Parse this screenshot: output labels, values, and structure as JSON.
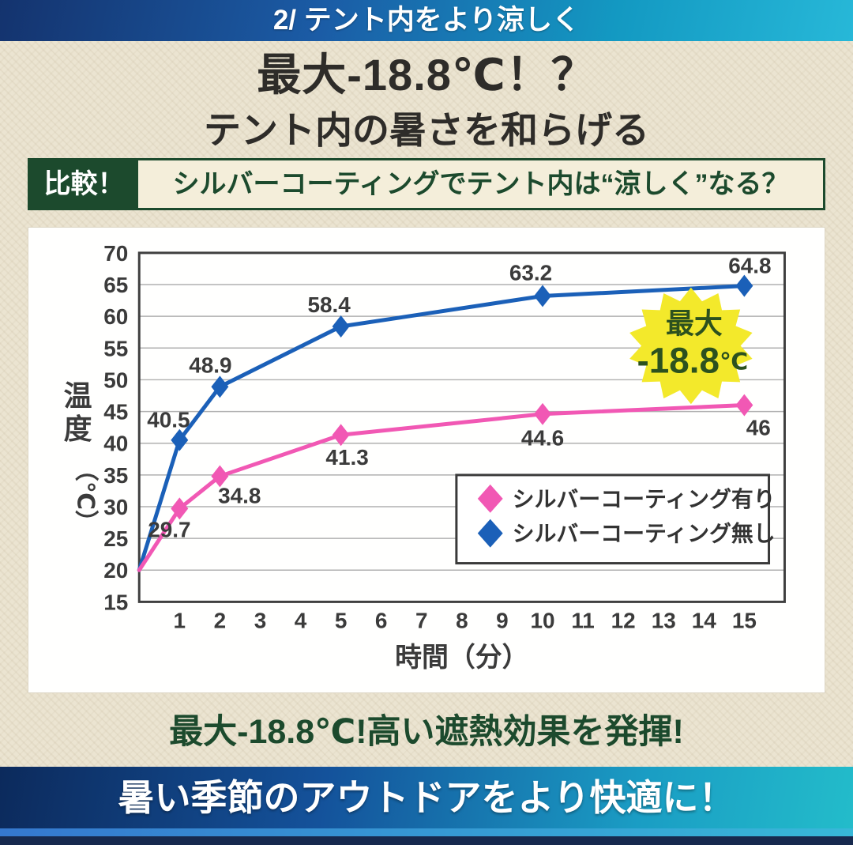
{
  "top_banner": {
    "text": "2/ テント内をより涼しく"
  },
  "hero": {
    "title": "最大-18.8℃！？",
    "subtitle": "テント内の暑さを和らげる"
  },
  "comparison": {
    "badge": "比較！",
    "question": "シルバーコーティングでテント内は“涼しく”なる？"
  },
  "chart_data": {
    "type": "line",
    "title": "",
    "xlabel": "時間（分）",
    "ylabel": "温度（℃）",
    "xlim": [
      0,
      16
    ],
    "ylim": [
      15,
      70
    ],
    "x_ticks": [
      1,
      2,
      3,
      4,
      5,
      6,
      7,
      8,
      9,
      10,
      11,
      12,
      13,
      14,
      15
    ],
    "y_ticks": [
      15,
      20,
      25,
      30,
      35,
      40,
      45,
      50,
      55,
      60,
      65,
      70
    ],
    "grid": true,
    "legend_position": "lower right",
    "series": [
      {
        "name": "シルバーコーティング有り",
        "color": "#f158b4",
        "x": [
          0,
          1,
          2,
          5,
          10,
          15
        ],
        "y": [
          20,
          29.7,
          34.8,
          41.3,
          44.6,
          46
        ],
        "labels": [
          null,
          {
            "text": "29.7",
            "dx": -13,
            "dy": 36
          },
          {
            "text": "34.8",
            "dx": 25,
            "dy": 34
          },
          {
            "text": "41.3",
            "dx": 8,
            "dy": 38
          },
          {
            "text": "44.6",
            "dx": 0,
            "dy": 40
          },
          {
            "text": "46",
            "dx": 18,
            "dy": 38
          }
        ]
      },
      {
        "name": "シルバーコーティング無し",
        "color": "#1b60b8",
        "x": [
          0,
          1,
          2,
          5,
          10,
          15
        ],
        "y": [
          20,
          40.5,
          48.9,
          58.4,
          63.2,
          64.8
        ],
        "labels": [
          null,
          {
            "text": "40.5",
            "dx": -14,
            "dy": -16
          },
          {
            "text": "48.9",
            "dx": -12,
            "dy": -18
          },
          {
            "text": "58.4",
            "dx": -15,
            "dy": -18
          },
          {
            "text": "63.2",
            "dx": -15,
            "dy": -20
          },
          {
            "text": "64.8",
            "dx": 7,
            "dy": -16
          }
        ]
      }
    ],
    "annotation": {
      "line1": "最大",
      "value": "-18.8",
      "unit": "℃"
    }
  },
  "footer": {
    "highlight": "最大-18.8℃!高い遮熱効果を発揮!",
    "banner": "暑い季節のアウトドアをより快適に！"
  },
  "colors": {
    "accent_pink": "#f158b4",
    "accent_blue": "#1b60b8",
    "deep_green": "#1c4a2d",
    "star_yellow": "#f3e92b",
    "star_text_green": "#2c511e",
    "page_beige": "#ebe4d1",
    "cream_bar": "#f4eeda",
    "axis_dark": "#3f3f3f",
    "grid_gray": "#b0b0b0",
    "label_dark": "#3b3b3b"
  }
}
